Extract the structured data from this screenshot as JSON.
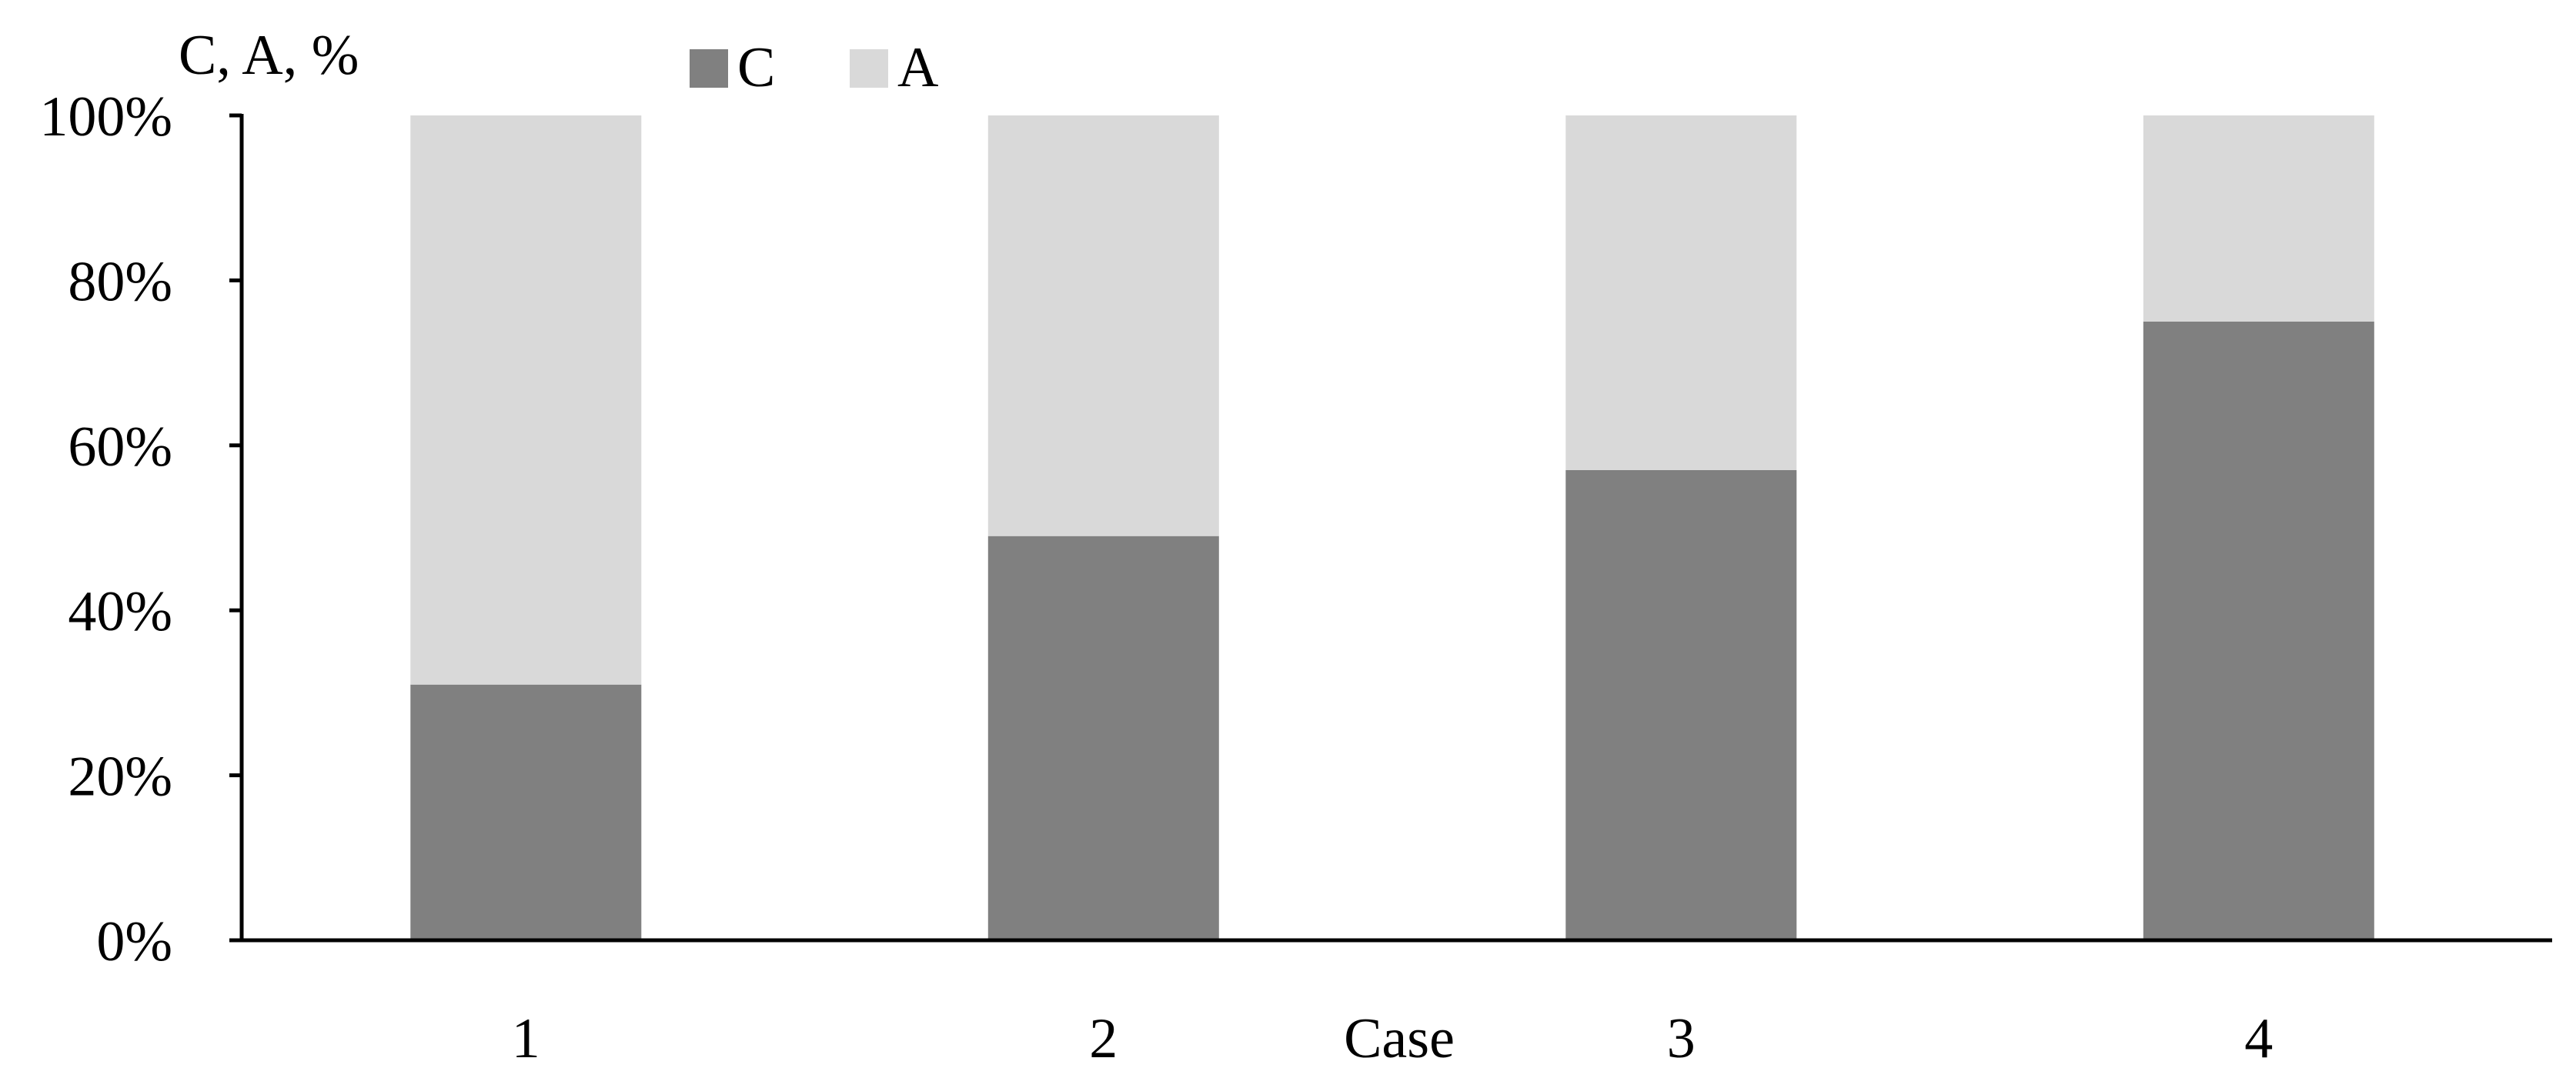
{
  "chart_data": {
    "type": "bar",
    "stacked": true,
    "ylabel": "C, A, %",
    "xlabel": "Case",
    "categories": [
      "1",
      "2",
      "3",
      "4"
    ],
    "series": [
      {
        "name": "C",
        "values": [
          31,
          49,
          57,
          75
        ],
        "color": "#808080"
      },
      {
        "name": "A",
        "values": [
          69,
          51,
          43,
          25
        ],
        "color": "#d9d9d9"
      }
    ],
    "ylim": [
      0,
      100
    ],
    "yticks": [
      0,
      20,
      40,
      60,
      80,
      100
    ],
    "ytick_labels": [
      "0%",
      "20%",
      "40%",
      "60%",
      "80%",
      "100%"
    ],
    "grid": false,
    "legend": "top"
  }
}
